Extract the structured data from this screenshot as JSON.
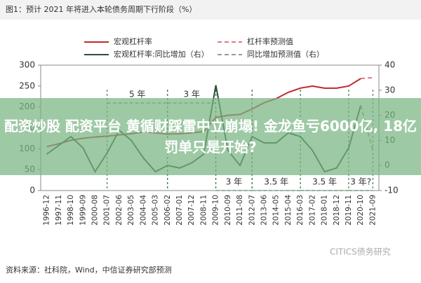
{
  "chart_data": {
    "type": "line",
    "title": "图1：预计 2021 年将进入本轮债务周期下行阶段（%）",
    "categories": [
      "1996-12",
      "1997-11",
      "1998-10",
      "1999-09",
      "2000-08",
      "2001-07",
      "2002-06",
      "2003-05",
      "2004-04",
      "2005-03",
      "2006-02",
      "2007-01",
      "2007-12",
      "2008-11",
      "2009-10",
      "2010-09",
      "2011-08",
      "2012-07",
      "2013-06",
      "2014-05",
      "2015-04",
      "2016-03",
      "2017-02",
      "2018-01",
      "2018-12",
      "2019-11",
      "2020-10",
      "2021-09"
    ],
    "series": [
      {
        "name": "宏观杠杆率",
        "color": "#c0282f",
        "dash": false,
        "values": [
          105,
          112,
          120,
          125,
          128,
          130,
          133,
          136,
          140,
          138,
          135,
          136,
          138,
          141,
          175,
          180,
          182,
          195,
          210,
          220,
          235,
          245,
          250,
          245,
          245,
          250,
          268,
          null
        ]
      },
      {
        "name": "杠杆率预测值",
        "color": "#e07a80",
        "dash": true,
        "values": [
          null,
          null,
          null,
          null,
          null,
          null,
          null,
          null,
          null,
          null,
          null,
          null,
          null,
          null,
          null,
          null,
          null,
          null,
          null,
          null,
          null,
          null,
          null,
          null,
          null,
          null,
          268,
          270
        ]
      },
      {
        "name": "宏观杠杆率:同比增加（右）",
        "color": "#2b4f38",
        "dash": false,
        "axis": "y2",
        "values": [
          4.5,
          8,
          11.5,
          7,
          -2.5,
          5,
          14,
          10,
          3,
          -2.5,
          0,
          -1,
          1,
          4.5,
          32,
          6,
          0,
          11.5,
          9,
          9,
          13,
          11.5,
          6,
          -2.5,
          -1,
          7,
          24,
          null
        ]
      },
      {
        "name": "同比增加预测值（右）",
        "color": "#999999",
        "dash": true,
        "axis": "y2",
        "values": [
          null,
          null,
          null,
          null,
          null,
          null,
          null,
          null,
          null,
          null,
          null,
          null,
          null,
          null,
          null,
          null,
          null,
          null,
          null,
          null,
          null,
          null,
          null,
          null,
          null,
          null,
          24,
          6
        ]
      }
    ],
    "ylim": [
      0,
      300
    ],
    "yticks": [
      0,
      50,
      100,
      150,
      200,
      250,
      300
    ],
    "y2lim": [
      -10,
      40
    ],
    "y2ticks": [
      -10,
      0,
      10,
      20,
      30,
      40
    ],
    "annotations": [
      "5 年",
      "3 年",
      "3 年",
      "3.5 年",
      "3.5 年",
      "3 年?"
    ],
    "source": "资料来源：社科院，Wind，中信证券研究部预测",
    "watermark": "CITICS债务研究"
  },
  "banner_text": "配资炒股 配资平台 黄循财踩雷中立崩塌! 金龙鱼亏6000亿, 18亿罚单只是开始?"
}
